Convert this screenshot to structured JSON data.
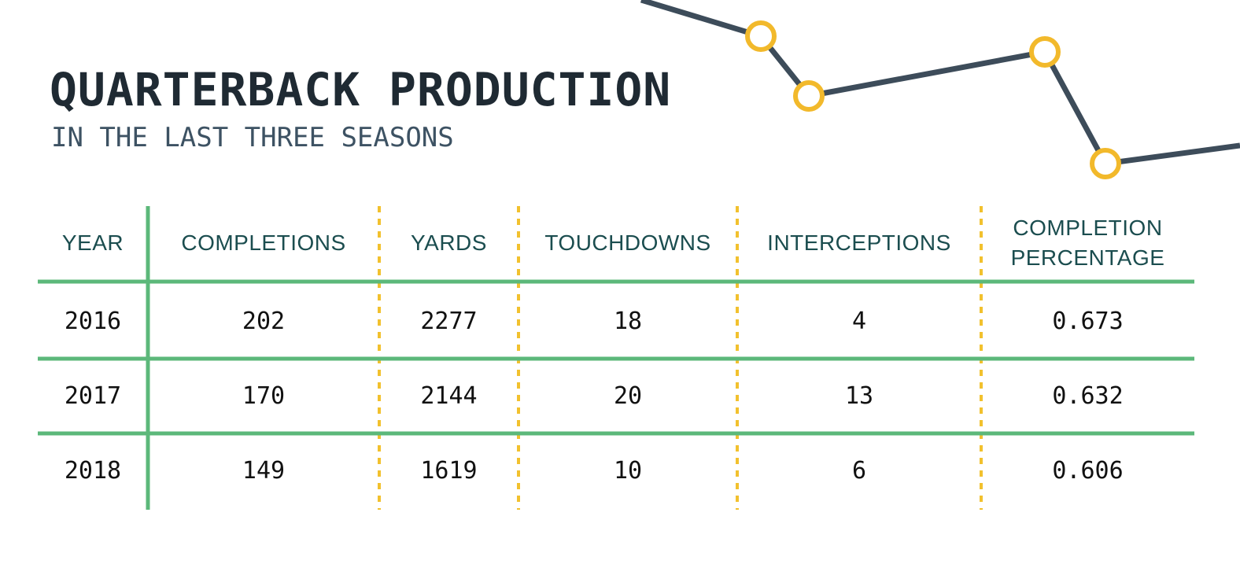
{
  "header": {
    "title": "QUARTERBACK PRODUCTION",
    "subtitle": "IN THE LAST THREE SEASONS"
  },
  "table": {
    "columns": [
      "YEAR",
      "COMPLETIONS",
      "YARDS",
      "TOUCHDOWNS",
      "INTERCEPTIONS",
      "COMPLETION PERCENTAGE"
    ],
    "rows": [
      [
        2016,
        202,
        2277,
        18,
        4,
        0.673
      ],
      [
        2017,
        170,
        2144,
        20,
        13,
        0.632
      ],
      [
        2018,
        149,
        1619,
        10,
        6,
        0.606
      ]
    ]
  }
}
